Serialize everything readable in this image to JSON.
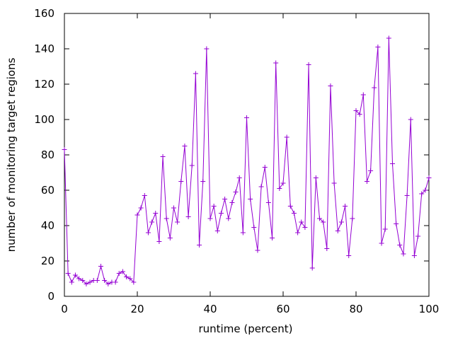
{
  "chart_data": {
    "type": "line",
    "title": "",
    "xlabel": "runtime (percent)",
    "ylabel": "number of monitoring target regions",
    "xlim": [
      0,
      100
    ],
    "ylim": [
      0,
      160
    ],
    "xticks": [
      0,
      20,
      40,
      60,
      80,
      100
    ],
    "yticks": [
      0,
      20,
      40,
      60,
      80,
      100,
      120,
      140,
      160
    ],
    "grid": false,
    "legend": "none",
    "line_color": "#9400d3",
    "series": [
      {
        "x": [
          0,
          1,
          2,
          3,
          4,
          5,
          6,
          7,
          8,
          9,
          10,
          11,
          12,
          13,
          14,
          15,
          16,
          17,
          18,
          19,
          20,
          21,
          22,
          23,
          24,
          25,
          26,
          27,
          28,
          29,
          30,
          31,
          32,
          33,
          34,
          35,
          36,
          37,
          38,
          39,
          40,
          41,
          42,
          43,
          44,
          45,
          46,
          47,
          48,
          49,
          50,
          51,
          52,
          53,
          54,
          55,
          56,
          57,
          58,
          59,
          60,
          61,
          62,
          63,
          64,
          65,
          66,
          67,
          68,
          69,
          70,
          71,
          72,
          73,
          74,
          75,
          76,
          77,
          78,
          79,
          80,
          81,
          82,
          83,
          84,
          85,
          86,
          87,
          88,
          89,
          90,
          91,
          92,
          93,
          94,
          95,
          96,
          97,
          98,
          99,
          100
        ],
        "y": [
          83,
          13,
          8,
          12,
          10,
          9,
          7,
          8,
          9,
          9,
          17,
          9,
          7,
          8,
          8,
          13,
          14,
          11,
          10,
          8,
          46,
          50,
          57,
          36,
          42,
          47,
          31,
          79,
          44,
          33,
          50,
          42,
          65,
          85,
          45,
          74,
          126,
          29,
          65,
          140,
          44,
          51,
          37,
          47,
          55,
          44,
          53,
          59,
          67,
          36,
          101,
          55,
          39,
          26,
          62,
          73,
          53,
          33,
          132,
          61,
          64,
          90,
          51,
          47,
          36,
          42,
          39,
          131,
          16,
          67,
          44,
          42,
          27,
          119,
          64,
          37,
          42,
          51,
          23,
          44,
          105,
          103,
          114,
          65,
          71,
          118,
          141,
          30,
          38,
          146,
          75,
          41,
          29,
          24,
          57,
          100,
          23,
          34,
          58,
          60,
          67
        ]
      }
    ]
  }
}
